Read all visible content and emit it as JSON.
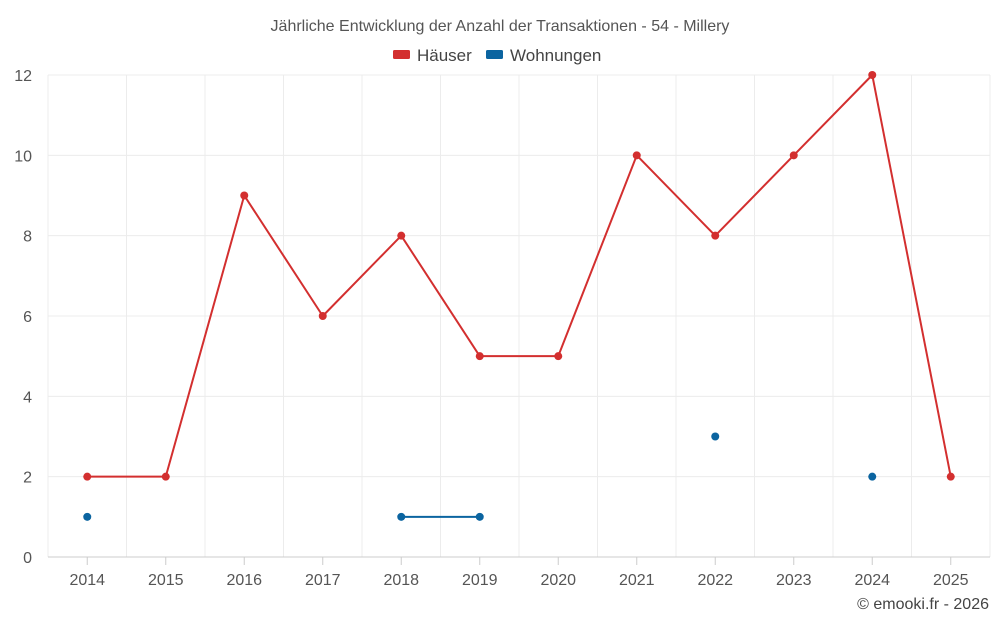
{
  "chart_data": {
    "type": "line",
    "title": "Jährliche Entwicklung der Anzahl der Transaktionen - 54 - Millery",
    "categories": [
      "2014",
      "2015",
      "2016",
      "2017",
      "2018",
      "2019",
      "2020",
      "2021",
      "2022",
      "2023",
      "2024",
      "2025"
    ],
    "series": [
      {
        "name": "Häuser",
        "color": "#d32f2f",
        "values": [
          2,
          2,
          9,
          6,
          8,
          5,
          5,
          10,
          8,
          10,
          12,
          2
        ]
      },
      {
        "name": "Wohnungen",
        "color": "#0b64a0",
        "values": [
          1,
          null,
          null,
          null,
          1,
          1,
          null,
          null,
          3,
          null,
          2,
          null
        ]
      }
    ],
    "ylim": [
      0,
      12
    ],
    "yticks": [
      0,
      2,
      4,
      6,
      8,
      10,
      12
    ],
    "xlabel": "",
    "ylabel": "",
    "grid": true,
    "legend": "top-center",
    "credit": "© emooki.fr - 2026"
  }
}
